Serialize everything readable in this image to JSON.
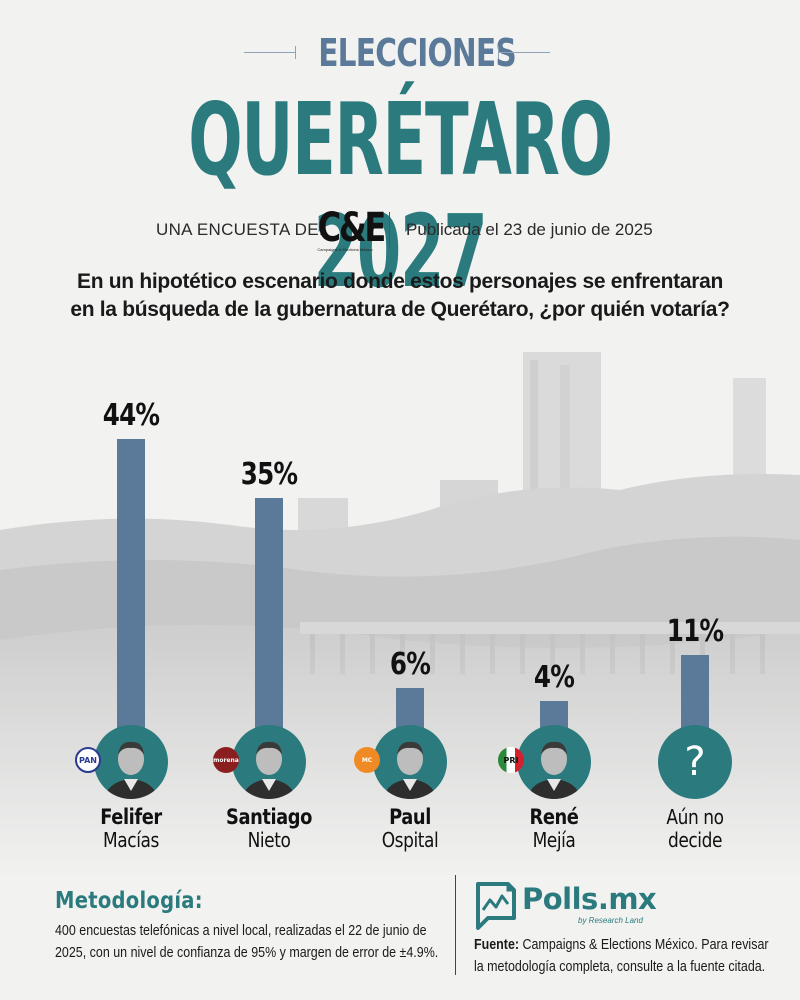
{
  "header": {
    "kicker": "ELECCIONES",
    "title": "QUERÉTARO 2027"
  },
  "byline": {
    "label": "UNA ENCUESTA DE:",
    "pollster_logo": "C&E",
    "pollster_logo_sub": "Campaigns & Elections México",
    "date": "Publicada el 23 de junio de 2025"
  },
  "question": {
    "line1": "En un hipotético escenario donde estos personajes se enfrentaran",
    "line2": "en la búsqueda de la gubernatura de Querétaro, ¿por quién votaría?"
  },
  "colors": {
    "bar": "#5b7a9a",
    "accent": "#2b7b7e",
    "background": "#f2f2f1"
  },
  "chart_data": {
    "type": "bar",
    "title": "En un hipotético escenario donde estos personajes se enfrentaran en la búsqueda de la gubernatura de Querétaro, ¿por quién votaría?",
    "xlabel": "",
    "ylabel": "",
    "ylim": [
      0,
      44
    ],
    "grid": false,
    "categories": [
      "Felifer Macías",
      "Santiago Nieto",
      "Paul Ospital",
      "René Mejía",
      "Aún no decide"
    ],
    "values": [
      44,
      35,
      6,
      4,
      11
    ],
    "value_labels": [
      "44%",
      "35%",
      "6%",
      "4%",
      "11%"
    ],
    "candidates": [
      {
        "first": "Felifer",
        "last": "Macías",
        "party": "PAN",
        "party_icon": "pan-logo-icon",
        "party_color": "#2b3a8f"
      },
      {
        "first": "Santiago",
        "last": "Nieto",
        "party": "morena",
        "party_icon": "morena-logo-icon",
        "party_color": "#8b1e1e"
      },
      {
        "first": "Paul",
        "last": "Ospital",
        "party": "MC",
        "party_icon": "movimiento-ciudadano-logo-icon",
        "party_color": "#f08a24"
      },
      {
        "first": "René",
        "last": "Mejía",
        "party": "PRI",
        "party_icon": "pri-logo-icon",
        "party_color": "#d4202c"
      },
      {
        "first": "Aún no",
        "last": "decide",
        "party": "",
        "party_icon": "question-mark-icon",
        "party_color": ""
      }
    ],
    "undecided_symbol": "?"
  },
  "footer": {
    "methodology_title": "Metodología:",
    "methodology_line1": "400 encuestas telefónicas a nivel local, realizadas el 22 de junio de",
    "methodology_line2": "2025, con un nivel de confianza de 95% y margen de error de ±4.9%.",
    "brand": "Polls.mx",
    "brand_sub": "by Research Land",
    "source_label": "Fuente:",
    "source_line1": " Campaigns & Elections México. Para revisar",
    "source_line2": "la metodología completa, consulte a la fuente citada."
  }
}
